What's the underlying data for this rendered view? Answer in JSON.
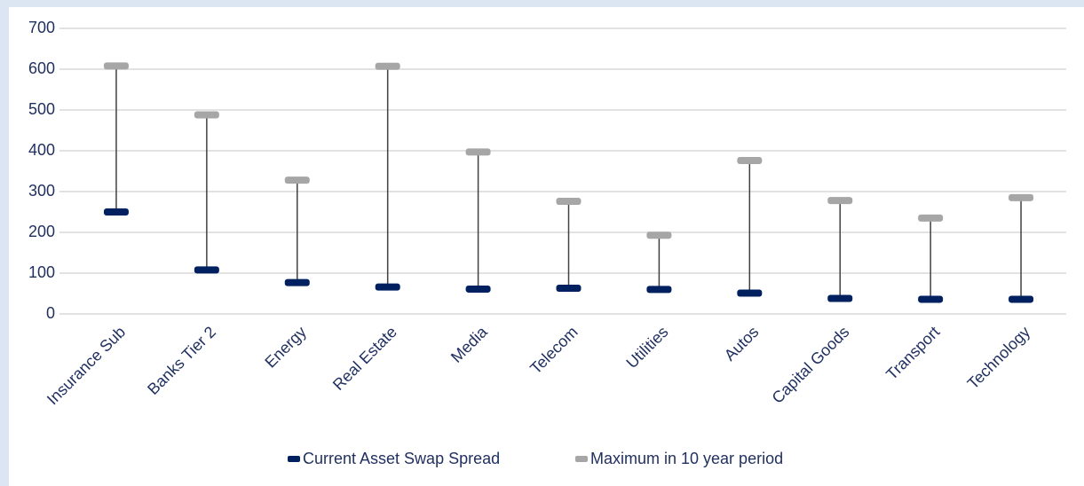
{
  "chart_data": {
    "type": "range",
    "categories": [
      "Insurance Sub",
      "Banks Tier 2",
      "Energy",
      "Real Estate",
      "Media",
      "Telecom",
      "Utilities",
      "Autos",
      "Capital Goods",
      "Transport",
      "Technology"
    ],
    "series": [
      {
        "name": "Current Asset Swap Spread",
        "color": "#002060",
        "values": [
          250,
          108,
          77,
          66,
          61,
          63,
          60,
          51,
          38,
          36,
          36
        ]
      },
      {
        "name": "Maximum in 10 year period",
        "color": "#a6a6a6",
        "values": [
          608,
          488,
          328,
          607,
          397,
          276,
          193,
          376,
          278,
          235,
          285
        ]
      }
    ],
    "ylim": [
      0,
      700
    ],
    "yticks": [
      0,
      100,
      200,
      300,
      400,
      500,
      600,
      700
    ],
    "grid": true,
    "legend": "bottom"
  }
}
